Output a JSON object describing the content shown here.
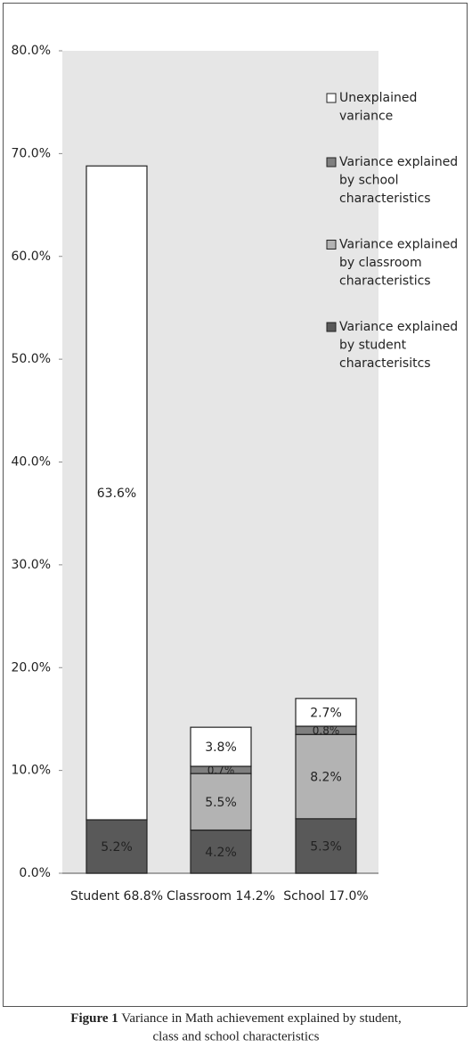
{
  "chart_data": {
    "type": "stacked_bar",
    "categories": [
      "Student 68.8%",
      "Classroom 14.2%",
      "School 17.0%"
    ],
    "series": [
      {
        "name": "Variance explained by student characterisitcs",
        "color": "#595959",
        "values": [
          5.2,
          4.2,
          5.3
        ],
        "value_labels": [
          "5.2%",
          "4.2%",
          "5.3%"
        ]
      },
      {
        "name": "Variance explained by classroom characteristics",
        "color": "#b3b3b3",
        "values": [
          null,
          5.5,
          8.2
        ],
        "value_labels": [
          null,
          "5.5%",
          "8.2%"
        ]
      },
      {
        "name": "Variance explained by school characteristics",
        "color": "#7f7f7f",
        "values": [
          null,
          0.7,
          0.8
        ],
        "value_labels": [
          null,
          "0.7%",
          "0.8%"
        ]
      },
      {
        "name": "Unexplained variance",
        "color": "#ffffff",
        "values": [
          63.6,
          3.8,
          2.7
        ],
        "value_labels": [
          "63.6%",
          "3.8%",
          "2.7%"
        ]
      }
    ],
    "ylim": [
      0,
      80
    ],
    "yticks": [
      {
        "value": 0,
        "label": "0.0%"
      },
      {
        "value": 10,
        "label": "10.0%"
      },
      {
        "value": 20,
        "label": "20.0%"
      },
      {
        "value": 30,
        "label": "30.0%"
      },
      {
        "value": 40,
        "label": "40.0%"
      },
      {
        "value": 50,
        "label": "50.0%"
      },
      {
        "value": 60,
        "label": "60.0%"
      },
      {
        "value": 70,
        "label": "70.0%"
      },
      {
        "value": 80,
        "label": "80.0%"
      }
    ],
    "plot_background": "#e6e6e6",
    "legend": "upper right",
    "figure_label": "Figure 1",
    "caption_lines": [
      "Variance in Math achievement explained by student,",
      "class and school characteristics"
    ]
  }
}
